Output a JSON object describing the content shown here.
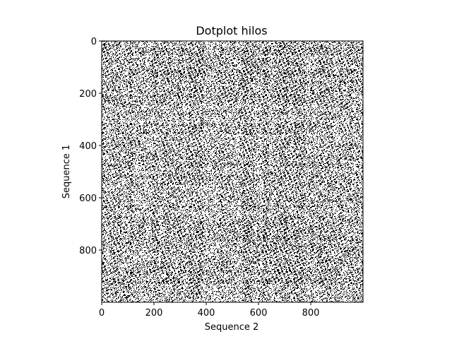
{
  "chart_data": {
    "type": "heatmap",
    "title": "Dotplot hilos",
    "xlabel": "Sequence 2",
    "ylabel": "Sequence 1",
    "x_range": [
      0,
      1000
    ],
    "y_range": [
      0,
      1000
    ],
    "y_inverted": true,
    "x_ticks": [
      0,
      200,
      400,
      600,
      800
    ],
    "y_ticks": [
      0,
      200,
      400,
      600,
      800
    ],
    "x_tick_labels": [
      "0",
      "200",
      "400",
      "600",
      "800"
    ],
    "y_tick_labels": [
      "0",
      "200",
      "400",
      "600",
      "800"
    ],
    "cell_values": [
      0,
      1
    ],
    "colors": {
      "match": "#000000",
      "background": "#ffffff",
      "axes": "#000000"
    },
    "grid": false,
    "legend": "none"
  }
}
